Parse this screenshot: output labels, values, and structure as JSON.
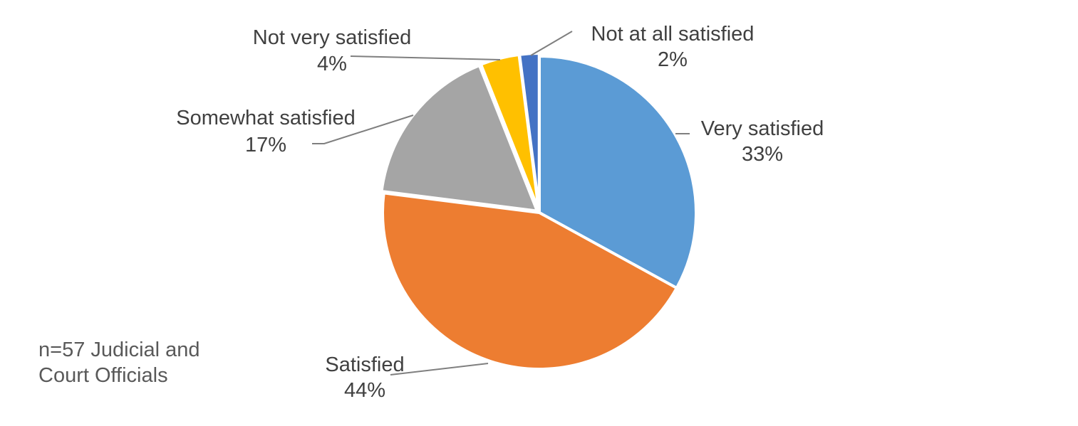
{
  "chart_data": {
    "type": "pie",
    "title": "",
    "slices": [
      {
        "label": "Very satisfied",
        "value": 33,
        "display": "33%",
        "color": "#5B9BD5"
      },
      {
        "label": "Satisfied",
        "value": 44,
        "display": "44%",
        "color": "#ED7D31"
      },
      {
        "label": "Somewhat satisfied",
        "value": 17,
        "display": "17%",
        "color": "#A5A5A5"
      },
      {
        "label": "Not very satisfied",
        "value": 4,
        "display": "4%",
        "color": "#FFC000"
      },
      {
        "label": "Not at all satisfied",
        "value": 2,
        "display": "2%",
        "color": "#4472C4"
      }
    ],
    "legend": "none"
  },
  "note": {
    "line1": "n=57 Judicial and",
    "line2": "Court Officials"
  }
}
